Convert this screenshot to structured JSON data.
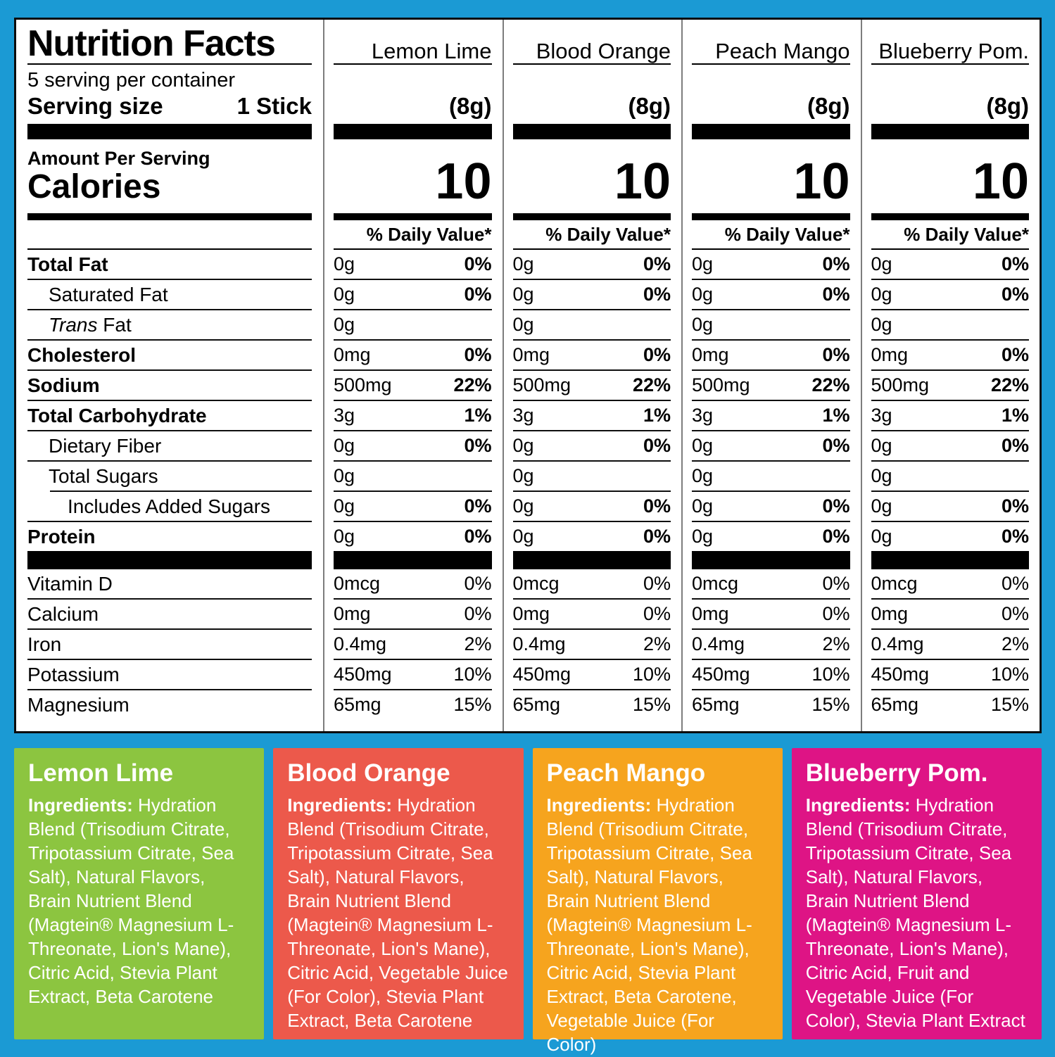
{
  "page": {
    "background": "#1b9ad4"
  },
  "panel": {
    "title": "Nutrition Facts",
    "servings_per_container": "5 serving per container",
    "serving_size_label": "Serving size",
    "serving_size_value": "1 Stick",
    "amount_per_serving": "Amount Per Serving",
    "calories_label": "Calories",
    "rows": [
      {
        "text": "Total Fat",
        "bold": true,
        "indent": 0
      },
      {
        "text": "Saturated Fat",
        "bold": false,
        "indent": 1
      },
      {
        "italic": "Trans",
        "text": " Fat",
        "bold": false,
        "indent": 1
      },
      {
        "text": "Cholesterol",
        "bold": true,
        "indent": 0
      },
      {
        "text": "Sodium",
        "bold": true,
        "indent": 0
      },
      {
        "text": "Total Carbohydrate",
        "bold": true,
        "indent": 0
      },
      {
        "text": "Dietary Fiber",
        "bold": false,
        "indent": 1
      },
      {
        "text": "Total Sugars",
        "bold": false,
        "indent": 1
      },
      {
        "text": "Includes Added Sugars",
        "bold": false,
        "indent": 2
      },
      {
        "text": "Protein",
        "bold": true,
        "indent": 0
      },
      {
        "text": "Vitamin D",
        "bold": false,
        "indent": 0
      },
      {
        "text": "Calcium",
        "bold": false,
        "indent": 0
      },
      {
        "text": "Iron",
        "bold": false,
        "indent": 0
      },
      {
        "text": "Potassium",
        "bold": false,
        "indent": 0
      },
      {
        "text": "Magnesium",
        "bold": false,
        "indent": 0
      }
    ]
  },
  "columns": [
    {
      "name": "Lemon Lime",
      "serving_size": "(8g)",
      "calories": "10",
      "daily_value_header": "% Daily Value*",
      "rows": [
        {
          "amount": "0g",
          "pct": "0%",
          "pct_bold": true
        },
        {
          "amount": "0g",
          "pct": "0%",
          "pct_bold": true
        },
        {
          "amount": "0g"
        },
        {
          "amount": "0mg",
          "pct": "0%",
          "pct_bold": true
        },
        {
          "amount": "500mg",
          "pct": "22%",
          "pct_bold": true
        },
        {
          "amount": "3g",
          "pct": "1%",
          "pct_bold": true
        },
        {
          "amount": "0g",
          "pct": "0%",
          "pct_bold": true
        },
        {
          "amount": "0g"
        },
        {
          "amount": "0g",
          "pct": "0%",
          "pct_bold": true
        },
        {
          "amount": "0g",
          "pct": "0%",
          "pct_bold": true
        },
        {
          "amount": "0mcg",
          "pct": "0%",
          "pct_bold": false
        },
        {
          "amount": "0mg",
          "pct": "0%",
          "pct_bold": false
        },
        {
          "amount": "0.4mg",
          "pct": "2%",
          "pct_bold": false
        },
        {
          "amount": "450mg",
          "pct": "10%",
          "pct_bold": false
        },
        {
          "amount": "65mg",
          "pct": "15%",
          "pct_bold": false
        }
      ]
    },
    {
      "name": "Blood Orange",
      "serving_size": "(8g)",
      "calories": "10",
      "daily_value_header": "% Daily Value*",
      "rows": [
        {
          "amount": "0g",
          "pct": "0%",
          "pct_bold": true
        },
        {
          "amount": "0g",
          "pct": "0%",
          "pct_bold": true
        },
        {
          "amount": "0g"
        },
        {
          "amount": "0mg",
          "pct": "0%",
          "pct_bold": true
        },
        {
          "amount": "500mg",
          "pct": "22%",
          "pct_bold": true
        },
        {
          "amount": "3g",
          "pct": "1%",
          "pct_bold": true
        },
        {
          "amount": "0g",
          "pct": "0%",
          "pct_bold": true
        },
        {
          "amount": "0g"
        },
        {
          "amount": "0g",
          "pct": "0%",
          "pct_bold": true
        },
        {
          "amount": "0g",
          "pct": "0%",
          "pct_bold": true
        },
        {
          "amount": "0mcg",
          "pct": "0%",
          "pct_bold": false
        },
        {
          "amount": "0mg",
          "pct": "0%",
          "pct_bold": false
        },
        {
          "amount": "0.4mg",
          "pct": "2%",
          "pct_bold": false
        },
        {
          "amount": "450mg",
          "pct": "10%",
          "pct_bold": false
        },
        {
          "amount": "65mg",
          "pct": "15%",
          "pct_bold": false
        }
      ]
    },
    {
      "name": "Peach Mango",
      "serving_size": "(8g)",
      "calories": "10",
      "daily_value_header": "% Daily Value*",
      "rows": [
        {
          "amount": "0g",
          "pct": "0%",
          "pct_bold": true
        },
        {
          "amount": "0g",
          "pct": "0%",
          "pct_bold": true
        },
        {
          "amount": "0g"
        },
        {
          "amount": "0mg",
          "pct": "0%",
          "pct_bold": true
        },
        {
          "amount": "500mg",
          "pct": "22%",
          "pct_bold": true
        },
        {
          "amount": "3g",
          "pct": "1%",
          "pct_bold": true
        },
        {
          "amount": "0g",
          "pct": "0%",
          "pct_bold": true
        },
        {
          "amount": "0g"
        },
        {
          "amount": "0g",
          "pct": "0%",
          "pct_bold": true
        },
        {
          "amount": "0g",
          "pct": "0%",
          "pct_bold": true
        },
        {
          "amount": "0mcg",
          "pct": "0%",
          "pct_bold": false
        },
        {
          "amount": "0mg",
          "pct": "0%",
          "pct_bold": false
        },
        {
          "amount": "0.4mg",
          "pct": "2%",
          "pct_bold": false
        },
        {
          "amount": "450mg",
          "pct": "10%",
          "pct_bold": false
        },
        {
          "amount": "65mg",
          "pct": "15%",
          "pct_bold": false
        }
      ]
    },
    {
      "name": "Blueberry Pom.",
      "serving_size": "(8g)",
      "calories": "10",
      "daily_value_header": "% Daily Value*",
      "rows": [
        {
          "amount": "0g",
          "pct": "0%",
          "pct_bold": true
        },
        {
          "amount": "0g",
          "pct": "0%",
          "pct_bold": true
        },
        {
          "amount": "0g"
        },
        {
          "amount": "0mg",
          "pct": "0%",
          "pct_bold": true
        },
        {
          "amount": "500mg",
          "pct": "22%",
          "pct_bold": true
        },
        {
          "amount": "3g",
          "pct": "1%",
          "pct_bold": true
        },
        {
          "amount": "0g",
          "pct": "0%",
          "pct_bold": true
        },
        {
          "amount": "0g"
        },
        {
          "amount": "0g",
          "pct": "0%",
          "pct_bold": true
        },
        {
          "amount": "0g",
          "pct": "0%",
          "pct_bold": true
        },
        {
          "amount": "0mcg",
          "pct": "0%",
          "pct_bold": false
        },
        {
          "amount": "0mg",
          "pct": "0%",
          "pct_bold": false
        },
        {
          "amount": "0.4mg",
          "pct": "2%",
          "pct_bold": false
        },
        {
          "amount": "450mg",
          "pct": "10%",
          "pct_bold": false
        },
        {
          "amount": "65mg",
          "pct": "15%",
          "pct_bold": false
        }
      ]
    }
  ],
  "flavor_boxes": [
    {
      "name": "Lemon Lime",
      "color": "#8cc540",
      "ingredients_label": "Ingredients:",
      "ingredients_text": " Hydration Blend (Trisodium Citrate, Tripotassium Citrate, Sea Salt), Natural Flavors, Brain Nutrient Blend (Magtein® Magnesium L-Threonate, Lion's Mane), Citric Acid, Stevia Plant Extract, Beta Carotene"
    },
    {
      "name": "Blood Orange",
      "color": "#ec594b",
      "ingredients_label": "Ingredients:",
      "ingredients_text": " Hydration Blend (Trisodium Citrate, Tripotassium Citrate, Sea Salt), Natural Flavors, Brain Nutrient Blend (Magtein® Magnesium L-Threonate, Lion's Mane), Citric Acid, Vegetable Juice (For Color), Stevia Plant Extract, Beta Carotene"
    },
    {
      "name": "Peach Mango",
      "color": "#f6a41e",
      "ingredients_label": "Ingredients:",
      "ingredients_text": " Hydration Blend (Trisodium Citrate, Tripotassium Citrate, Sea Salt), Natural Flavors, Brain Nutrient Blend (Magtein® Magnesium L-Threonate, Lion's Mane), Citric Acid, Stevia Plant Extract, Beta Carotene, Vegetable Juice (For Color)"
    },
    {
      "name": "Blueberry Pom.",
      "color": "#de1485",
      "ingredients_label": "Ingredients:",
      "ingredients_text": " Hydration Blend (Trisodium Citrate, Tripotassium Citrate, Sea Salt), Natural Flavors, Brain Nutrient Blend (Magtein® Magnesium L-Threonate, Lion's Mane), Citric Acid, Fruit and Vegetable Juice (For Color), Stevia Plant Extract"
    }
  ]
}
